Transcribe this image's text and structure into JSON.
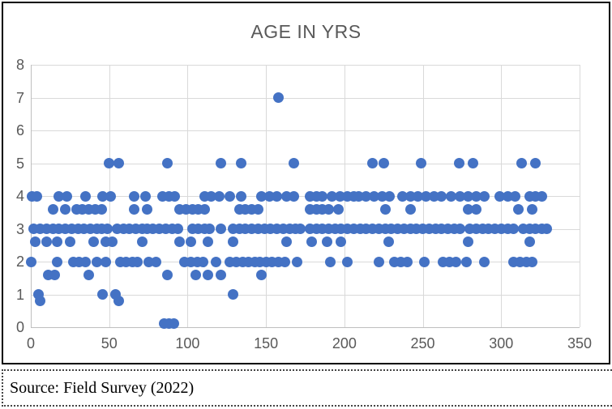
{
  "chart_title": "AGE IN YRS",
  "source_note": "Source: Field Survey (2022)",
  "colors": {
    "marker": "#4472C4",
    "grid": "#D9D9D9",
    "axis": "#BFBFBF",
    "tick_text": "#595959",
    "title_text": "#595959",
    "frame_border": "#000000"
  },
  "chart_data": {
    "type": "scatter",
    "title": "AGE IN YRS",
    "xlabel": "",
    "ylabel": "",
    "xlim": [
      0,
      350
    ],
    "ylim": [
      0,
      8
    ],
    "x_ticks": [
      0,
      50,
      100,
      150,
      200,
      250,
      300,
      350
    ],
    "y_ticks": [
      0,
      1,
      2,
      3,
      4,
      5,
      6,
      7,
      8
    ],
    "grid": true,
    "legend_position": "none",
    "marker_color": "#4472C4",
    "points": [
      [
        158,
        7
      ],
      [
        50,
        5
      ],
      [
        56,
        5
      ],
      [
        87,
        5
      ],
      [
        121,
        5
      ],
      [
        134,
        5
      ],
      [
        168,
        5
      ],
      [
        218,
        5
      ],
      [
        225,
        5
      ],
      [
        249,
        5
      ],
      [
        273,
        5
      ],
      [
        282,
        5
      ],
      [
        313,
        5
      ],
      [
        322,
        5
      ],
      [
        1,
        4
      ],
      [
        4,
        4
      ],
      [
        18,
        4
      ],
      [
        23,
        4
      ],
      [
        35,
        4
      ],
      [
        46,
        4
      ],
      [
        51,
        4
      ],
      [
        66,
        4
      ],
      [
        73,
        4
      ],
      [
        84,
        4
      ],
      [
        88,
        4
      ],
      [
        92,
        4
      ],
      [
        111,
        4
      ],
      [
        115,
        4
      ],
      [
        120,
        4
      ],
      [
        127,
        4
      ],
      [
        134,
        4
      ],
      [
        147,
        4
      ],
      [
        152,
        4
      ],
      [
        157,
        4
      ],
      [
        163,
        4
      ],
      [
        168,
        4
      ],
      [
        178,
        4
      ],
      [
        182,
        4
      ],
      [
        186,
        4
      ],
      [
        192,
        4
      ],
      [
        197,
        4
      ],
      [
        202,
        4
      ],
      [
        206,
        4
      ],
      [
        209,
        4
      ],
      [
        214,
        4
      ],
      [
        219,
        4
      ],
      [
        224,
        4
      ],
      [
        229,
        4
      ],
      [
        237,
        4
      ],
      [
        242,
        4
      ],
      [
        247,
        4
      ],
      [
        252,
        4
      ],
      [
        257,
        4
      ],
      [
        262,
        4
      ],
      [
        268,
        4
      ],
      [
        274,
        4
      ],
      [
        279,
        4
      ],
      [
        284,
        4
      ],
      [
        289,
        4
      ],
      [
        299,
        4
      ],
      [
        304,
        4
      ],
      [
        309,
        4
      ],
      [
        318,
        4
      ],
      [
        322,
        4
      ],
      [
        326,
        4
      ],
      [
        14,
        3.6
      ],
      [
        22,
        3.6
      ],
      [
        29,
        3.6
      ],
      [
        33,
        3.6
      ],
      [
        37,
        3.6
      ],
      [
        41,
        3.6
      ],
      [
        45,
        3.6
      ],
      [
        66,
        3.6
      ],
      [
        74,
        3.6
      ],
      [
        95,
        3.6
      ],
      [
        99,
        3.6
      ],
      [
        103,
        3.6
      ],
      [
        107,
        3.6
      ],
      [
        111,
        3.6
      ],
      [
        133,
        3.6
      ],
      [
        137,
        3.6
      ],
      [
        141,
        3.6
      ],
      [
        145,
        3.6
      ],
      [
        178,
        3.6
      ],
      [
        182,
        3.6
      ],
      [
        186,
        3.6
      ],
      [
        190,
        3.6
      ],
      [
        196,
        3.6
      ],
      [
        226,
        3.6
      ],
      [
        242,
        3.6
      ],
      [
        279,
        3.6
      ],
      [
        284,
        3.6
      ],
      [
        311,
        3.6
      ],
      [
        320,
        3.6
      ],
      [
        2,
        3
      ],
      [
        6,
        3
      ],
      [
        10,
        3
      ],
      [
        14,
        3
      ],
      [
        18,
        3
      ],
      [
        22,
        3
      ],
      [
        26,
        3
      ],
      [
        30,
        3
      ],
      [
        34,
        3
      ],
      [
        38,
        3
      ],
      [
        42,
        3
      ],
      [
        45,
        3
      ],
      [
        49,
        3
      ],
      [
        55,
        3
      ],
      [
        59,
        3
      ],
      [
        63,
        3
      ],
      [
        67,
        3
      ],
      [
        71,
        3
      ],
      [
        74,
        3
      ],
      [
        78,
        3
      ],
      [
        82,
        3
      ],
      [
        86,
        3
      ],
      [
        90,
        3
      ],
      [
        94,
        3
      ],
      [
        103,
        3
      ],
      [
        107,
        3
      ],
      [
        111,
        3
      ],
      [
        114,
        3
      ],
      [
        121,
        3
      ],
      [
        129,
        3
      ],
      [
        133,
        3
      ],
      [
        137,
        3
      ],
      [
        141,
        3
      ],
      [
        145,
        3
      ],
      [
        149,
        3
      ],
      [
        153,
        3
      ],
      [
        157,
        3
      ],
      [
        161,
        3
      ],
      [
        165,
        3
      ],
      [
        169,
        3
      ],
      [
        172,
        3
      ],
      [
        178,
        3
      ],
      [
        182,
        3
      ],
      [
        186,
        3
      ],
      [
        190,
        3
      ],
      [
        194,
        3
      ],
      [
        198,
        3
      ],
      [
        202,
        3
      ],
      [
        206,
        3
      ],
      [
        210,
        3
      ],
      [
        214,
        3
      ],
      [
        218,
        3
      ],
      [
        222,
        3
      ],
      [
        226,
        3
      ],
      [
        230,
        3
      ],
      [
        234,
        3
      ],
      [
        238,
        3
      ],
      [
        242,
        3
      ],
      [
        246,
        3
      ],
      [
        250,
        3
      ],
      [
        254,
        3
      ],
      [
        258,
        3
      ],
      [
        262,
        3
      ],
      [
        266,
        3
      ],
      [
        270,
        3
      ],
      [
        274,
        3
      ],
      [
        280,
        3
      ],
      [
        284,
        3
      ],
      [
        288,
        3
      ],
      [
        292,
        3
      ],
      [
        296,
        3
      ],
      [
        300,
        3
      ],
      [
        304,
        3
      ],
      [
        308,
        3
      ],
      [
        314,
        3
      ],
      [
        318,
        3
      ],
      [
        322,
        3
      ],
      [
        326,
        3
      ],
      [
        329,
        3
      ],
      [
        3,
        2.6
      ],
      [
        10,
        2.6
      ],
      [
        17,
        2.6
      ],
      [
        25,
        2.6
      ],
      [
        40,
        2.6
      ],
      [
        48,
        2.6
      ],
      [
        52,
        2.6
      ],
      [
        71,
        2.6
      ],
      [
        95,
        2.6
      ],
      [
        102,
        2.6
      ],
      [
        113,
        2.6
      ],
      [
        129,
        2.6
      ],
      [
        163,
        2.6
      ],
      [
        179,
        2.6
      ],
      [
        189,
        2.6
      ],
      [
        198,
        2.6
      ],
      [
        228,
        2.6
      ],
      [
        279,
        2.6
      ],
      [
        318,
        2.6
      ],
      [
        0,
        2
      ],
      [
        17,
        2
      ],
      [
        27,
        2
      ],
      [
        31,
        2
      ],
      [
        35,
        2
      ],
      [
        42,
        2
      ],
      [
        48,
        2
      ],
      [
        57,
        2
      ],
      [
        61,
        2
      ],
      [
        65,
        2
      ],
      [
        68,
        2
      ],
      [
        75,
        2
      ],
      [
        80,
        2
      ],
      [
        98,
        2
      ],
      [
        102,
        2
      ],
      [
        106,
        2
      ],
      [
        110,
        2
      ],
      [
        118,
        2
      ],
      [
        127,
        2
      ],
      [
        131,
        2
      ],
      [
        135,
        2
      ],
      [
        139,
        2
      ],
      [
        143,
        2
      ],
      [
        146,
        2
      ],
      [
        150,
        2
      ],
      [
        154,
        2
      ],
      [
        158,
        2
      ],
      [
        162,
        2
      ],
      [
        170,
        2
      ],
      [
        191,
        2
      ],
      [
        202,
        2
      ],
      [
        222,
        2
      ],
      [
        232,
        2
      ],
      [
        236,
        2
      ],
      [
        240,
        2
      ],
      [
        251,
        2
      ],
      [
        263,
        2
      ],
      [
        267,
        2
      ],
      [
        271,
        2
      ],
      [
        278,
        2
      ],
      [
        289,
        2
      ],
      [
        308,
        2
      ],
      [
        312,
        2
      ],
      [
        316,
        2
      ],
      [
        320,
        2
      ],
      [
        11,
        1.6
      ],
      [
        15,
        1.6
      ],
      [
        37,
        1.6
      ],
      [
        87,
        1.6
      ],
      [
        105,
        1.6
      ],
      [
        113,
        1.6
      ],
      [
        121,
        1.6
      ],
      [
        147,
        1.6
      ],
      [
        5,
        1
      ],
      [
        46,
        1
      ],
      [
        54,
        1
      ],
      [
        129,
        1
      ],
      [
        6,
        0.8
      ],
      [
        56,
        0.8
      ],
      [
        85,
        0.1
      ],
      [
        88,
        0.1
      ],
      [
        91,
        0.1
      ]
    ]
  }
}
